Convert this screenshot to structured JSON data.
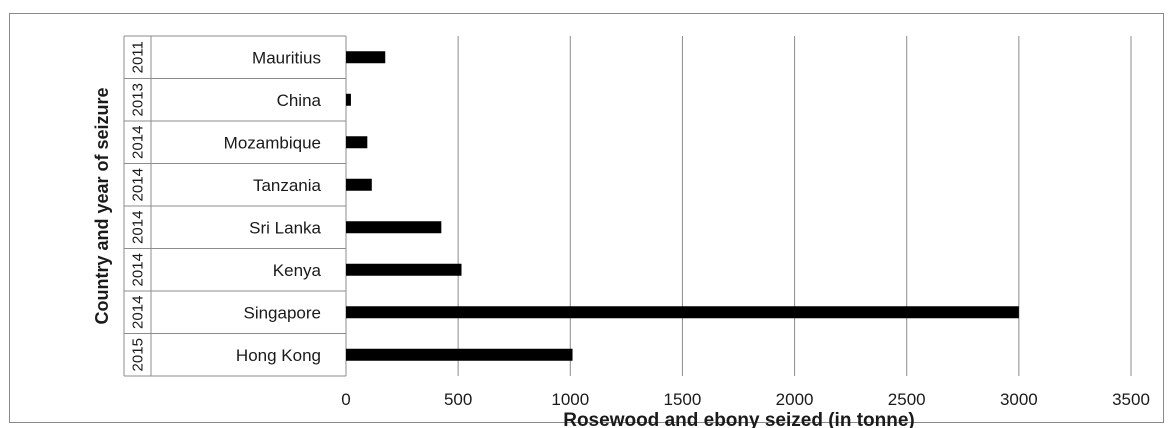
{
  "chart_data": {
    "type": "bar",
    "orientation": "horizontal",
    "categories": [
      "Hong Kong",
      "Singapore",
      "Kenya",
      "Sri Lanka",
      "Tanzania",
      "Mozambique",
      "China",
      "Mauritius"
    ],
    "years": [
      "2015",
      "2014",
      "2014",
      "2014",
      "2014",
      "2014",
      "2013",
      "2011"
    ],
    "values": [
      1010,
      3000,
      515,
      425,
      115,
      95,
      22,
      175
    ],
    "title": "",
    "xlabel": "Rosewood and ebony seized (in tonne)",
    "ylabel": "Country and year of seizure",
    "xlim": [
      0,
      3500
    ],
    "xticks": [
      0,
      500,
      1000,
      1500,
      2000,
      2500,
      3000,
      3500
    ],
    "grid": "vertical",
    "legend": "none",
    "bar_color": "#000000",
    "grid_color": "#8c8c8c"
  }
}
